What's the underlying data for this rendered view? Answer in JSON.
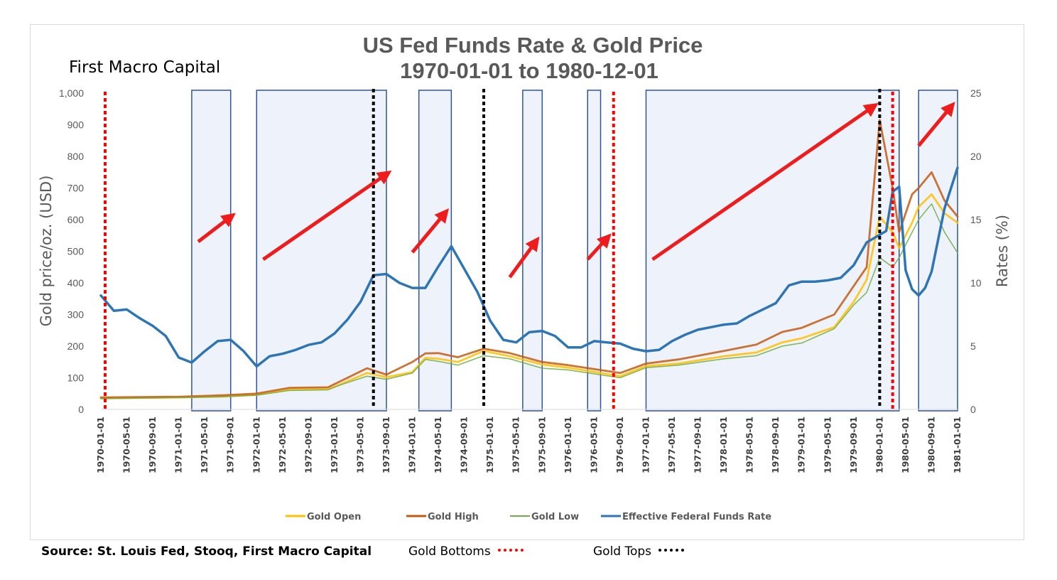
{
  "chart_data": {
    "type": "line",
    "title": "US Fed Funds Rate & Gold Price",
    "subtitle": "1970-01-01 to 1980-12-01",
    "brand": "First Macro Capital",
    "ylabel": "Gold price/oz. (USD)",
    "y2label": "Rates (%)",
    "ylim": [
      0,
      1000
    ],
    "y2lim": [
      0,
      25
    ],
    "yticks": [
      "0",
      "100",
      "200",
      "300",
      "400",
      "500",
      "600",
      "700",
      "800",
      "900",
      "1,000"
    ],
    "y2ticks": [
      "0",
      "5",
      "10",
      "15",
      "20",
      "25"
    ],
    "x_tick_labels": [
      "1970-01-01",
      "1970-05-01",
      "1970-09-01",
      "1971-01-01",
      "1971-05-01",
      "1971-09-01",
      "1972-01-01",
      "1972-05-01",
      "1972-09-01",
      "1973-01-01",
      "1973-05-01",
      "1973-09-01",
      "1974-01-01",
      "1974-05-01",
      "1974-09-01",
      "1975-01-01",
      "1975-05-01",
      "1975-09-01",
      "1976-01-01",
      "1976-05-01",
      "1976-09-01",
      "1977-01-01",
      "1977-05-01",
      "1977-09-01",
      "1978-01-01",
      "1978-05-01",
      "1978-09-01",
      "1979-01-01",
      "1979-05-01",
      "1979-09-01",
      "1980-01-01",
      "1980-05-01",
      "1980-09-01",
      "1981-01-01"
    ],
    "x_start": "1970-01-01",
    "x_end": "1981-01-01",
    "series": [
      {
        "name": "Gold Open",
        "color": "#ffc000",
        "axis": "left",
        "x": [
          "1970-01-01",
          "1971-01-01",
          "1971-08-01",
          "1972-01-01",
          "1972-06-01",
          "1972-12-01",
          "1973-02-01",
          "1973-06-01",
          "1973-09-01",
          "1974-01-01",
          "1974-03-01",
          "1974-05-01",
          "1974-08-01",
          "1974-12-01",
          "1975-04-01",
          "1975-09-01",
          "1976-01-01",
          "1976-09-01",
          "1977-01-01",
          "1977-06-01",
          "1978-01-01",
          "1978-06-01",
          "1978-10-01",
          "1979-01-01",
          "1979-06-01",
          "1979-09-01",
          "1979-11-01",
          "1980-01-01",
          "1980-03-01",
          "1980-04-01",
          "1980-06-01",
          "1980-07-01",
          "1980-09-01",
          "1980-11-01",
          "1981-01-01"
        ],
        "y": [
          35,
          38,
          41,
          46,
          62,
          64,
          80,
          115,
          102,
          118,
          163,
          160,
          150,
          185,
          168,
          142,
          132,
          105,
          137,
          145,
          168,
          180,
          212,
          225,
          260,
          340,
          410,
          610,
          560,
          510,
          590,
          640,
          680,
          620,
          590
        ]
      },
      {
        "name": "Gold High",
        "color": "#c55a11",
        "axis": "left",
        "x": [
          "1970-01-01",
          "1971-01-01",
          "1971-08-01",
          "1972-01-01",
          "1972-06-01",
          "1972-12-01",
          "1973-02-01",
          "1973-06-01",
          "1973-09-01",
          "1974-01-01",
          "1974-03-01",
          "1974-05-01",
          "1974-08-01",
          "1974-12-01",
          "1975-04-01",
          "1975-09-01",
          "1976-01-01",
          "1976-09-01",
          "1977-01-01",
          "1977-06-01",
          "1978-01-01",
          "1978-06-01",
          "1978-10-01",
          "1979-01-01",
          "1979-06-01",
          "1979-09-01",
          "1979-11-01",
          "1980-01-01",
          "1980-03-01",
          "1980-04-01",
          "1980-06-01",
          "1980-07-01",
          "1980-09-01",
          "1980-11-01",
          "1981-01-01"
        ],
        "y": [
          38,
          40,
          45,
          50,
          68,
          70,
          90,
          130,
          110,
          150,
          177,
          178,
          165,
          192,
          178,
          150,
          140,
          115,
          145,
          158,
          185,
          205,
          245,
          258,
          300,
          390,
          450,
          915,
          700,
          560,
          680,
          700,
          750,
          660,
          610
        ]
      },
      {
        "name": "Gold Low",
        "color": "#70ad47",
        "axis": "left",
        "x": [
          "1970-01-01",
          "1971-01-01",
          "1971-08-01",
          "1972-01-01",
          "1972-06-01",
          "1972-12-01",
          "1973-02-01",
          "1973-06-01",
          "1973-09-01",
          "1974-01-01",
          "1974-03-01",
          "1974-05-01",
          "1974-08-01",
          "1974-12-01",
          "1975-04-01",
          "1975-09-01",
          "1976-01-01",
          "1976-09-01",
          "1977-01-01",
          "1977-06-01",
          "1978-01-01",
          "1978-06-01",
          "1978-10-01",
          "1979-01-01",
          "1979-06-01",
          "1979-09-01",
          "1979-11-01",
          "1980-01-01",
          "1980-03-01",
          "1980-04-01",
          "1980-06-01",
          "1980-07-01",
          "1980-09-01",
          "1980-11-01",
          "1981-01-01"
        ],
        "y": [
          34,
          37,
          40,
          45,
          60,
          62,
          78,
          105,
          95,
          115,
          158,
          152,
          140,
          170,
          160,
          130,
          125,
          100,
          132,
          140,
          160,
          170,
          200,
          210,
          255,
          330,
          370,
          480,
          450,
          480,
          560,
          600,
          650,
          560,
          495
        ]
      },
      {
        "name": "Effective Federal Funds Rate",
        "color": "#2e75b6",
        "axis": "right",
        "x": [
          "1970-01-01",
          "1970-03-01",
          "1970-05-01",
          "1970-07-01",
          "1970-09-01",
          "1970-11-01",
          "1971-01-01",
          "1971-03-01",
          "1971-05-01",
          "1971-07-01",
          "1971-09-01",
          "1971-11-01",
          "1972-01-01",
          "1972-03-01",
          "1972-05-01",
          "1972-07-01",
          "1972-09-01",
          "1972-11-01",
          "1973-01-01",
          "1973-03-01",
          "1973-05-01",
          "1973-07-01",
          "1973-09-01",
          "1973-11-01",
          "1974-01-01",
          "1974-03-01",
          "1974-05-01",
          "1974-07-01",
          "1974-09-01",
          "1974-11-01",
          "1975-01-01",
          "1975-03-01",
          "1975-05-01",
          "1975-07-01",
          "1975-09-01",
          "1975-11-01",
          "1976-01-01",
          "1976-03-01",
          "1976-05-01",
          "1976-07-01",
          "1976-09-01",
          "1976-11-01",
          "1977-01-01",
          "1977-03-01",
          "1977-05-01",
          "1977-07-01",
          "1977-09-01",
          "1977-11-01",
          "1978-01-01",
          "1978-03-01",
          "1978-05-01",
          "1978-07-01",
          "1978-09-01",
          "1978-11-01",
          "1979-01-01",
          "1979-03-01",
          "1979-05-01",
          "1979-07-01",
          "1979-09-01",
          "1979-11-01",
          "1980-01-01",
          "1980-02-01",
          "1980-03-01",
          "1980-04-01",
          "1980-05-01",
          "1980-06-01",
          "1980-07-01",
          "1980-08-01",
          "1980-09-01",
          "1980-11-01",
          "1981-01-01"
        ],
        "y": [
          9.0,
          7.8,
          7.9,
          7.2,
          6.6,
          5.8,
          4.1,
          3.7,
          4.6,
          5.4,
          5.5,
          4.6,
          3.4,
          4.2,
          4.4,
          4.7,
          5.1,
          5.3,
          6.0,
          7.1,
          8.5,
          10.6,
          10.7,
          10.0,
          9.6,
          9.6,
          11.3,
          12.9,
          11.1,
          9.3,
          7.0,
          5.5,
          5.3,
          6.1,
          6.2,
          5.8,
          4.9,
          4.9,
          5.4,
          5.3,
          5.2,
          4.8,
          4.6,
          4.7,
          5.4,
          5.9,
          6.3,
          6.5,
          6.7,
          6.8,
          7.4,
          7.9,
          8.4,
          9.8,
          10.1,
          10.1,
          10.2,
          10.4,
          11.4,
          13.2,
          13.8,
          14.1,
          17.2,
          17.6,
          11.0,
          9.5,
          9.0,
          9.6,
          10.9,
          15.9,
          19.1
        ]
      }
    ],
    "gold_bottoms": [
      "1970-01-01",
      "1976-08-01",
      "1980-03-01"
    ],
    "gold_tops": [
      "1973-07-01",
      "1974-12-01",
      "1980-01-01"
    ],
    "shaded_periods": [
      {
        "start": "1971-03-01",
        "end": "1971-09-01"
      },
      {
        "start": "1972-01-01",
        "end": "1973-09-01"
      },
      {
        "start": "1974-02-01",
        "end": "1974-07-01"
      },
      {
        "start": "1975-06-01",
        "end": "1975-09-01"
      },
      {
        "start": "1976-04-01",
        "end": "1976-06-01"
      },
      {
        "start": "1977-01-01",
        "end": "1980-04-01"
      },
      {
        "start": "1980-07-01",
        "end": "1981-01-01"
      }
    ],
    "grid": false,
    "legend_position": "bottom"
  },
  "footer": {
    "source": "Source: St. Louis Fed, Stooq, First Macro Capital",
    "bottoms_label": "Gold Bottoms",
    "tops_label": "Gold Tops"
  },
  "colors": {
    "bottom_marker": "#ff0000",
    "top_marker": "#000000",
    "shade_fill": "#eef2fa",
    "shade_border": "#2f5597",
    "arrow": "#ee1c1c"
  }
}
